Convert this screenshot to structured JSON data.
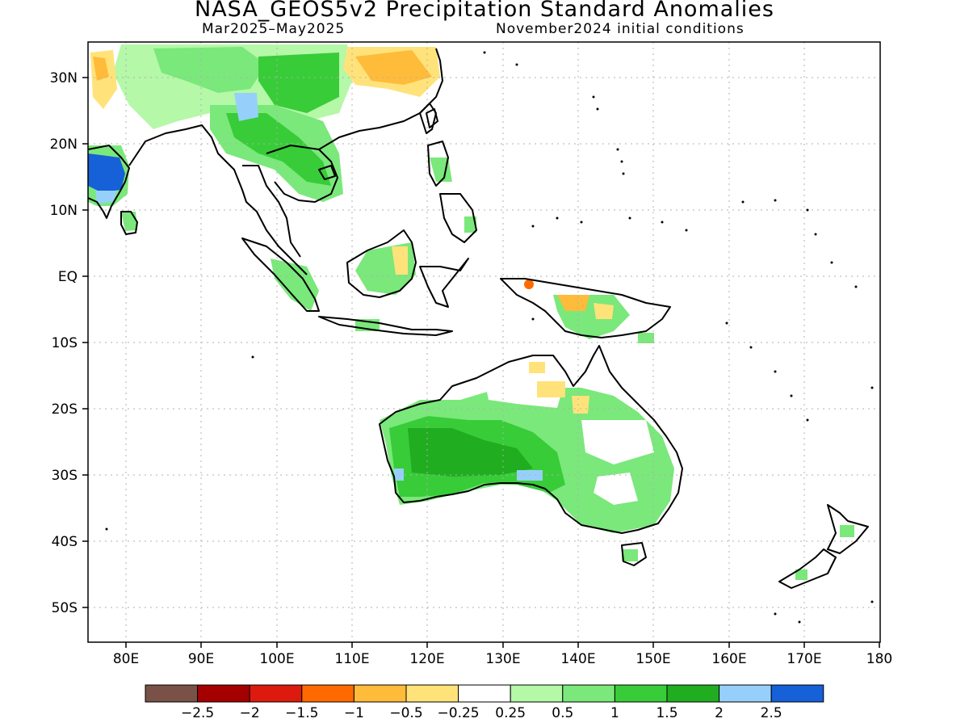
{
  "title": "NASA_GEOS5v2 Precipitation Standard Anomalies",
  "subtitle_left": "Mar2025–May2025",
  "subtitle_right": "November2024 initial conditions",
  "lat_ticks": [
    "30N",
    "20N",
    "10N",
    "EQ",
    "10S",
    "20S",
    "30S",
    "40S",
    "50S"
  ],
  "lon_ticks": [
    "80E",
    "90E",
    "100E",
    "110E",
    "120E",
    "130E",
    "140E",
    "150E",
    "160E",
    "170E",
    "180"
  ],
  "colorbar": {
    "labels": [
      "−2.5",
      "−2",
      "−1.5",
      "−1",
      "−0.5",
      "−0.25",
      "0.25",
      "0.5",
      "1",
      "1.5",
      "2",
      "2.5"
    ],
    "colors": [
      "#7a5146",
      "#a50000",
      "#dc1a0e",
      "#ff6a00",
      "#ffbb3a",
      "#ffe37a",
      "#ffffff",
      "#b4f8a8",
      "#7ae87a",
      "#38cc38",
      "#20ad20",
      "#96d0fa",
      "#1660d8"
    ]
  },
  "map": {
    "coastline_color": "#000000",
    "grid_color": "#b0b0b0"
  }
}
